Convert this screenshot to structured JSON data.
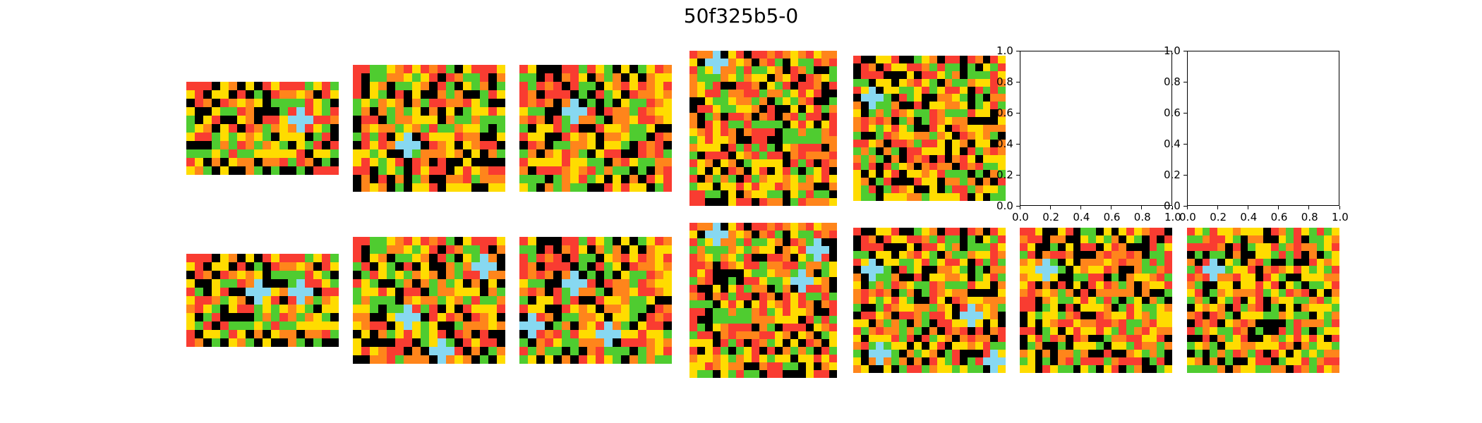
{
  "title": "50f325b5-0",
  "colors": {
    "0": "#000000",
    "1": "#1E93FF",
    "2": "#F93C31",
    "3": "#4FCC30",
    "4": "#FFDC00",
    "5": "#999999",
    "6": "#E53AA3",
    "7": "#FF851B",
    "8": "#87D8F1",
    "9": "#921231"
  },
  "axis_ticks": {
    "x": [
      "0.0",
      "0.2",
      "0.4",
      "0.6",
      "0.8",
      "1.0"
    ],
    "y": [
      "0.0",
      "0.2",
      "0.4",
      "0.6",
      "0.8",
      "1.0"
    ]
  },
  "panels": [
    {
      "row": 0,
      "col": 0,
      "rows": 11,
      "cols": 18,
      "seed": 11,
      "blue": [
        [
          3,
          13
        ],
        [
          4,
          12
        ],
        [
          4,
          13
        ],
        [
          4,
          14
        ],
        [
          5,
          13
        ]
      ]
    },
    {
      "row": 0,
      "col": 1,
      "rows": 15,
      "cols": 18,
      "seed": 23,
      "blue": [
        [
          8,
          6
        ],
        [
          9,
          5
        ],
        [
          9,
          6
        ],
        [
          9,
          7
        ],
        [
          10,
          6
        ]
      ]
    },
    {
      "row": 0,
      "col": 2,
      "rows": 15,
      "cols": 18,
      "seed": 37,
      "blue": [
        [
          4,
          6
        ],
        [
          5,
          5
        ],
        [
          5,
          6
        ],
        [
          5,
          7
        ],
        [
          6,
          6
        ]
      ]
    },
    {
      "row": 0,
      "col": 3,
      "rows": 20,
      "cols": 19,
      "seed": 41,
      "blue": [
        [
          0,
          3
        ],
        [
          1,
          2
        ],
        [
          1,
          3
        ],
        [
          1,
          4
        ],
        [
          2,
          3
        ]
      ]
    },
    {
      "row": 0,
      "col": 4,
      "rows": 19,
      "cols": 20,
      "seed": 53,
      "blue": [
        [
          4,
          2
        ],
        [
          5,
          1
        ],
        [
          5,
          2
        ],
        [
          5,
          3
        ],
        [
          6,
          2
        ]
      ]
    },
    {
      "row": 1,
      "col": 0,
      "rows": 11,
      "cols": 18,
      "seed": 11,
      "blue": [
        [
          3,
          13
        ],
        [
          4,
          12
        ],
        [
          4,
          13
        ],
        [
          4,
          14
        ],
        [
          5,
          13
        ],
        [
          3,
          8
        ],
        [
          4,
          7
        ],
        [
          4,
          8
        ],
        [
          4,
          9
        ],
        [
          5,
          8
        ]
      ]
    },
    {
      "row": 1,
      "col": 1,
      "rows": 15,
      "cols": 18,
      "seed": 23,
      "blue": [
        [
          8,
          6
        ],
        [
          9,
          5
        ],
        [
          9,
          6
        ],
        [
          9,
          7
        ],
        [
          10,
          6
        ],
        [
          2,
          15
        ],
        [
          3,
          14
        ],
        [
          3,
          15
        ],
        [
          3,
          16
        ],
        [
          4,
          15
        ],
        [
          12,
          10
        ],
        [
          13,
          9
        ],
        [
          13,
          10
        ],
        [
          13,
          11
        ],
        [
          14,
          10
        ]
      ]
    },
    {
      "row": 1,
      "col": 2,
      "rows": 15,
      "cols": 18,
      "seed": 37,
      "blue": [
        [
          4,
          6
        ],
        [
          5,
          5
        ],
        [
          5,
          6
        ],
        [
          5,
          7
        ],
        [
          6,
          6
        ],
        [
          9,
          1
        ],
        [
          10,
          0
        ],
        [
          10,
          1
        ],
        [
          10,
          2
        ],
        [
          11,
          1
        ],
        [
          10,
          10
        ],
        [
          11,
          9
        ],
        [
          11,
          10
        ],
        [
          11,
          11
        ],
        [
          12,
          10
        ]
      ]
    },
    {
      "row": 1,
      "col": 3,
      "rows": 20,
      "cols": 19,
      "seed": 41,
      "blue": [
        [
          0,
          3
        ],
        [
          1,
          2
        ],
        [
          1,
          3
        ],
        [
          1,
          4
        ],
        [
          2,
          3
        ],
        [
          2,
          16
        ],
        [
          3,
          15
        ],
        [
          3,
          16
        ],
        [
          3,
          17
        ],
        [
          4,
          16
        ],
        [
          6,
          14
        ],
        [
          7,
          13
        ],
        [
          7,
          14
        ],
        [
          7,
          15
        ],
        [
          8,
          14
        ]
      ]
    },
    {
      "row": 1,
      "col": 4,
      "rows": 19,
      "cols": 20,
      "seed": 53,
      "blue": [
        [
          4,
          2
        ],
        [
          5,
          1
        ],
        [
          5,
          2
        ],
        [
          5,
          3
        ],
        [
          6,
          2
        ],
        [
          10,
          15
        ],
        [
          11,
          14
        ],
        [
          11,
          15
        ],
        [
          11,
          16
        ],
        [
          12,
          15
        ],
        [
          15,
          3
        ],
        [
          16,
          2
        ],
        [
          16,
          3
        ],
        [
          16,
          4
        ],
        [
          17,
          3
        ],
        [
          16,
          18
        ],
        [
          17,
          17
        ],
        [
          17,
          18
        ],
        [
          17,
          19
        ],
        [
          18,
          18
        ]
      ]
    },
    {
      "row": 1,
      "col": 5,
      "rows": 19,
      "cols": 20,
      "seed": 67,
      "blue": [
        [
          4,
          3
        ],
        [
          5,
          2
        ],
        [
          5,
          3
        ],
        [
          5,
          4
        ],
        [
          6,
          3
        ]
      ]
    },
    {
      "row": 1,
      "col": 6,
      "rows": 19,
      "cols": 20,
      "seed": 71,
      "blue": [
        [
          4,
          3
        ],
        [
          5,
          2
        ],
        [
          5,
          3
        ],
        [
          5,
          4
        ],
        [
          6,
          3
        ]
      ]
    }
  ],
  "empty_axes": [
    {
      "row": 0,
      "col": 5
    },
    {
      "row": 0,
      "col": 6
    }
  ]
}
